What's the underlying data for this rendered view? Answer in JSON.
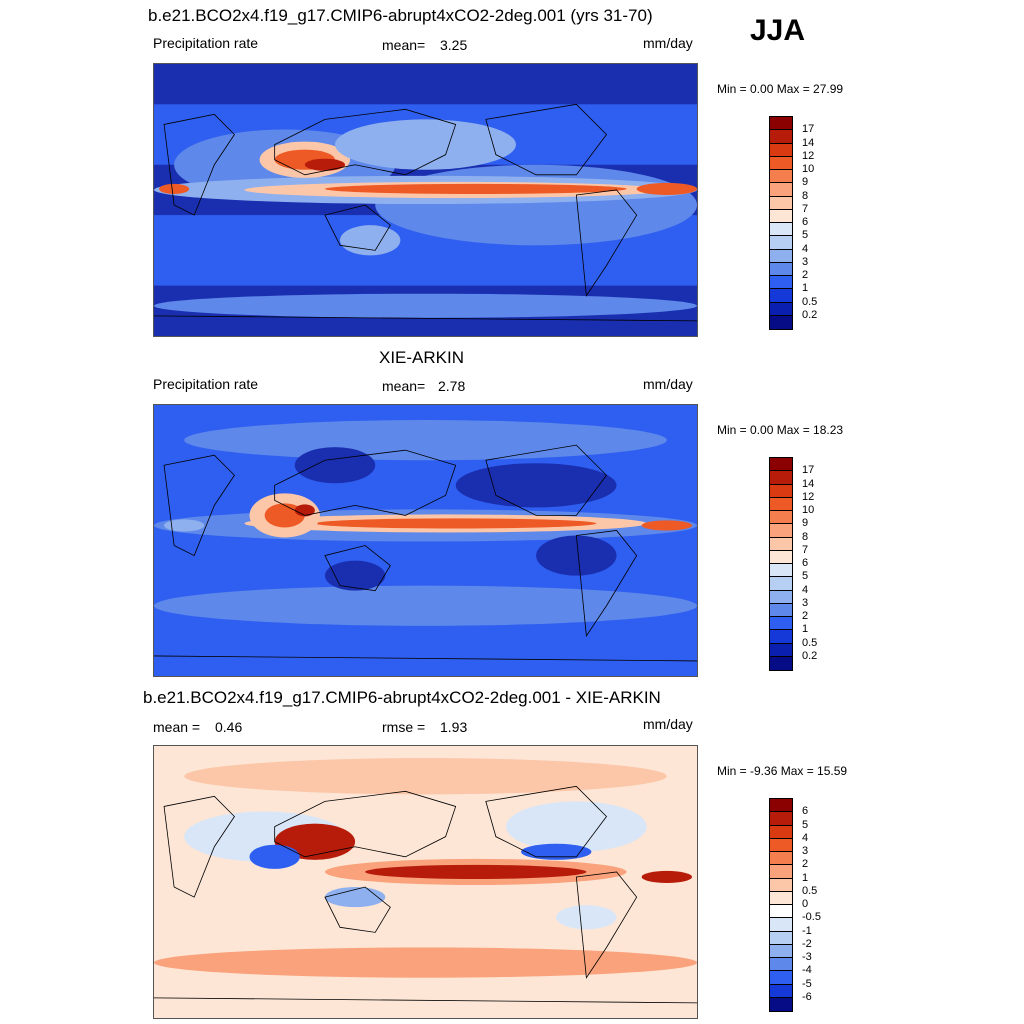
{
  "season_label": "JJA",
  "units": "mm/day",
  "panels": [
    {
      "title": "b.e21.BCO2x4.f19_g17.CMIP6-abrupt4xCO2-2deg.001 (yrs 31-70)",
      "left_label": "Precipitation rate",
      "stat_label": "mean=",
      "stat_value": "3.25",
      "units": "mm/day",
      "minmax_label": "Min =   0.00 Max =  27.99",
      "colorbar_ticks": [
        "17",
        "14",
        "12",
        "10",
        "9",
        "8",
        "7",
        "6",
        "5",
        "4",
        "3",
        "2",
        "1",
        "0.5",
        "0.2"
      ],
      "colorbar_colors": [
        "#8b0000",
        "#b71c0a",
        "#d93a12",
        "#ee5a25",
        "#f57e4f",
        "#f9a27c",
        "#fcc7a9",
        "#fde6d6",
        "#d8e6f7",
        "#b7cff2",
        "#8fb0ef",
        "#5e88ea",
        "#2f5ff0",
        "#1538d8",
        "#0a1fb0",
        "#050c85"
      ],
      "map_colors": [
        "#1a2fb0",
        "#2f5ff0",
        "#5e88ea",
        "#8fb0ef",
        "#fcc7a9",
        "#ee5a25",
        "#b71c0a"
      ]
    },
    {
      "title": "XIE-ARKIN",
      "left_label": "Precipitation rate",
      "stat_label": "mean=",
      "stat_value": "2.78",
      "units": "mm/day",
      "minmax_label": "Min =   0.00 Max =  18.23",
      "colorbar_ticks": [
        "17",
        "14",
        "12",
        "10",
        "9",
        "8",
        "7",
        "6",
        "5",
        "4",
        "3",
        "2",
        "1",
        "0.5",
        "0.2"
      ],
      "colorbar_colors": [
        "#8b0000",
        "#b71c0a",
        "#d93a12",
        "#ee5a25",
        "#f57e4f",
        "#f9a27c",
        "#fcc7a9",
        "#fde6d6",
        "#d8e6f7",
        "#b7cff2",
        "#8fb0ef",
        "#5e88ea",
        "#2f5ff0",
        "#1538d8",
        "#0a1fb0",
        "#050c85"
      ],
      "map_colors": [
        "#1a2fb0",
        "#2f5ff0",
        "#5e88ea",
        "#8fb0ef",
        "#fcc7a9",
        "#ee5a25",
        "#b71c0a"
      ]
    },
    {
      "title": "b.e21.BCO2x4.f19_g17.CMIP6-abrupt4xCO2-2deg.001 - XIE-ARKIN",
      "left_label_name": "mean =",
      "left_label_value": "0.46",
      "stat_label": "rmse =",
      "stat_value": "1.93",
      "units": "mm/day",
      "minmax_label": "Min =  -9.36 Max =  15.59",
      "colorbar_ticks": [
        "6",
        "5",
        "4",
        "3",
        "2",
        "1",
        "0.5",
        "0",
        "-0.5",
        "-1",
        "-2",
        "-3",
        "-4",
        "-5",
        "-6"
      ],
      "colorbar_colors": [
        "#8b0000",
        "#b71c0a",
        "#d93a12",
        "#ee5a25",
        "#f57e4f",
        "#f9a27c",
        "#fcc7a9",
        "#fde6d6",
        "#ffffff",
        "#d8e6f7",
        "#b7cff2",
        "#8fb0ef",
        "#5e88ea",
        "#2f5ff0",
        "#1538d8",
        "#050c85"
      ],
      "map_colors": [
        "#fde6d6",
        "#fcc7a9",
        "#f9a27c",
        "#d8e6f7",
        "#8fb0ef",
        "#2f5ff0",
        "#b71c0a"
      ]
    }
  ]
}
